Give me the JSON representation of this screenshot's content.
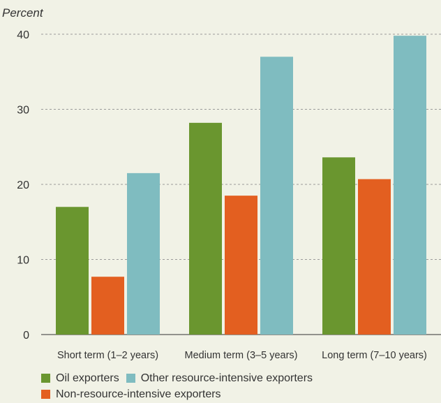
{
  "chart_data": {
    "type": "bar",
    "title": "",
    "ylabel": "Percent",
    "xlabel": "",
    "categories": [
      "Short term (1–2 years)",
      "Medium term (3–5 years)",
      "Long term (7–10 years)"
    ],
    "series": [
      {
        "name": "Oil exporters",
        "color": "#6a962f",
        "values": [
          17,
          28.2,
          23.6
        ]
      },
      {
        "name": "Non-resource-intensive exporters",
        "color": "#e35f20",
        "values": [
          7.7,
          18.5,
          20.7
        ]
      },
      {
        "name": "Other resource-intensive exporters",
        "color": "#7fbcc0",
        "values": [
          21.5,
          37,
          39.8
        ]
      }
    ],
    "ylim": [
      0,
      40
    ],
    "yticks": [
      0,
      10,
      20,
      30,
      40
    ],
    "grid": true,
    "legend_placement": "bottom"
  }
}
